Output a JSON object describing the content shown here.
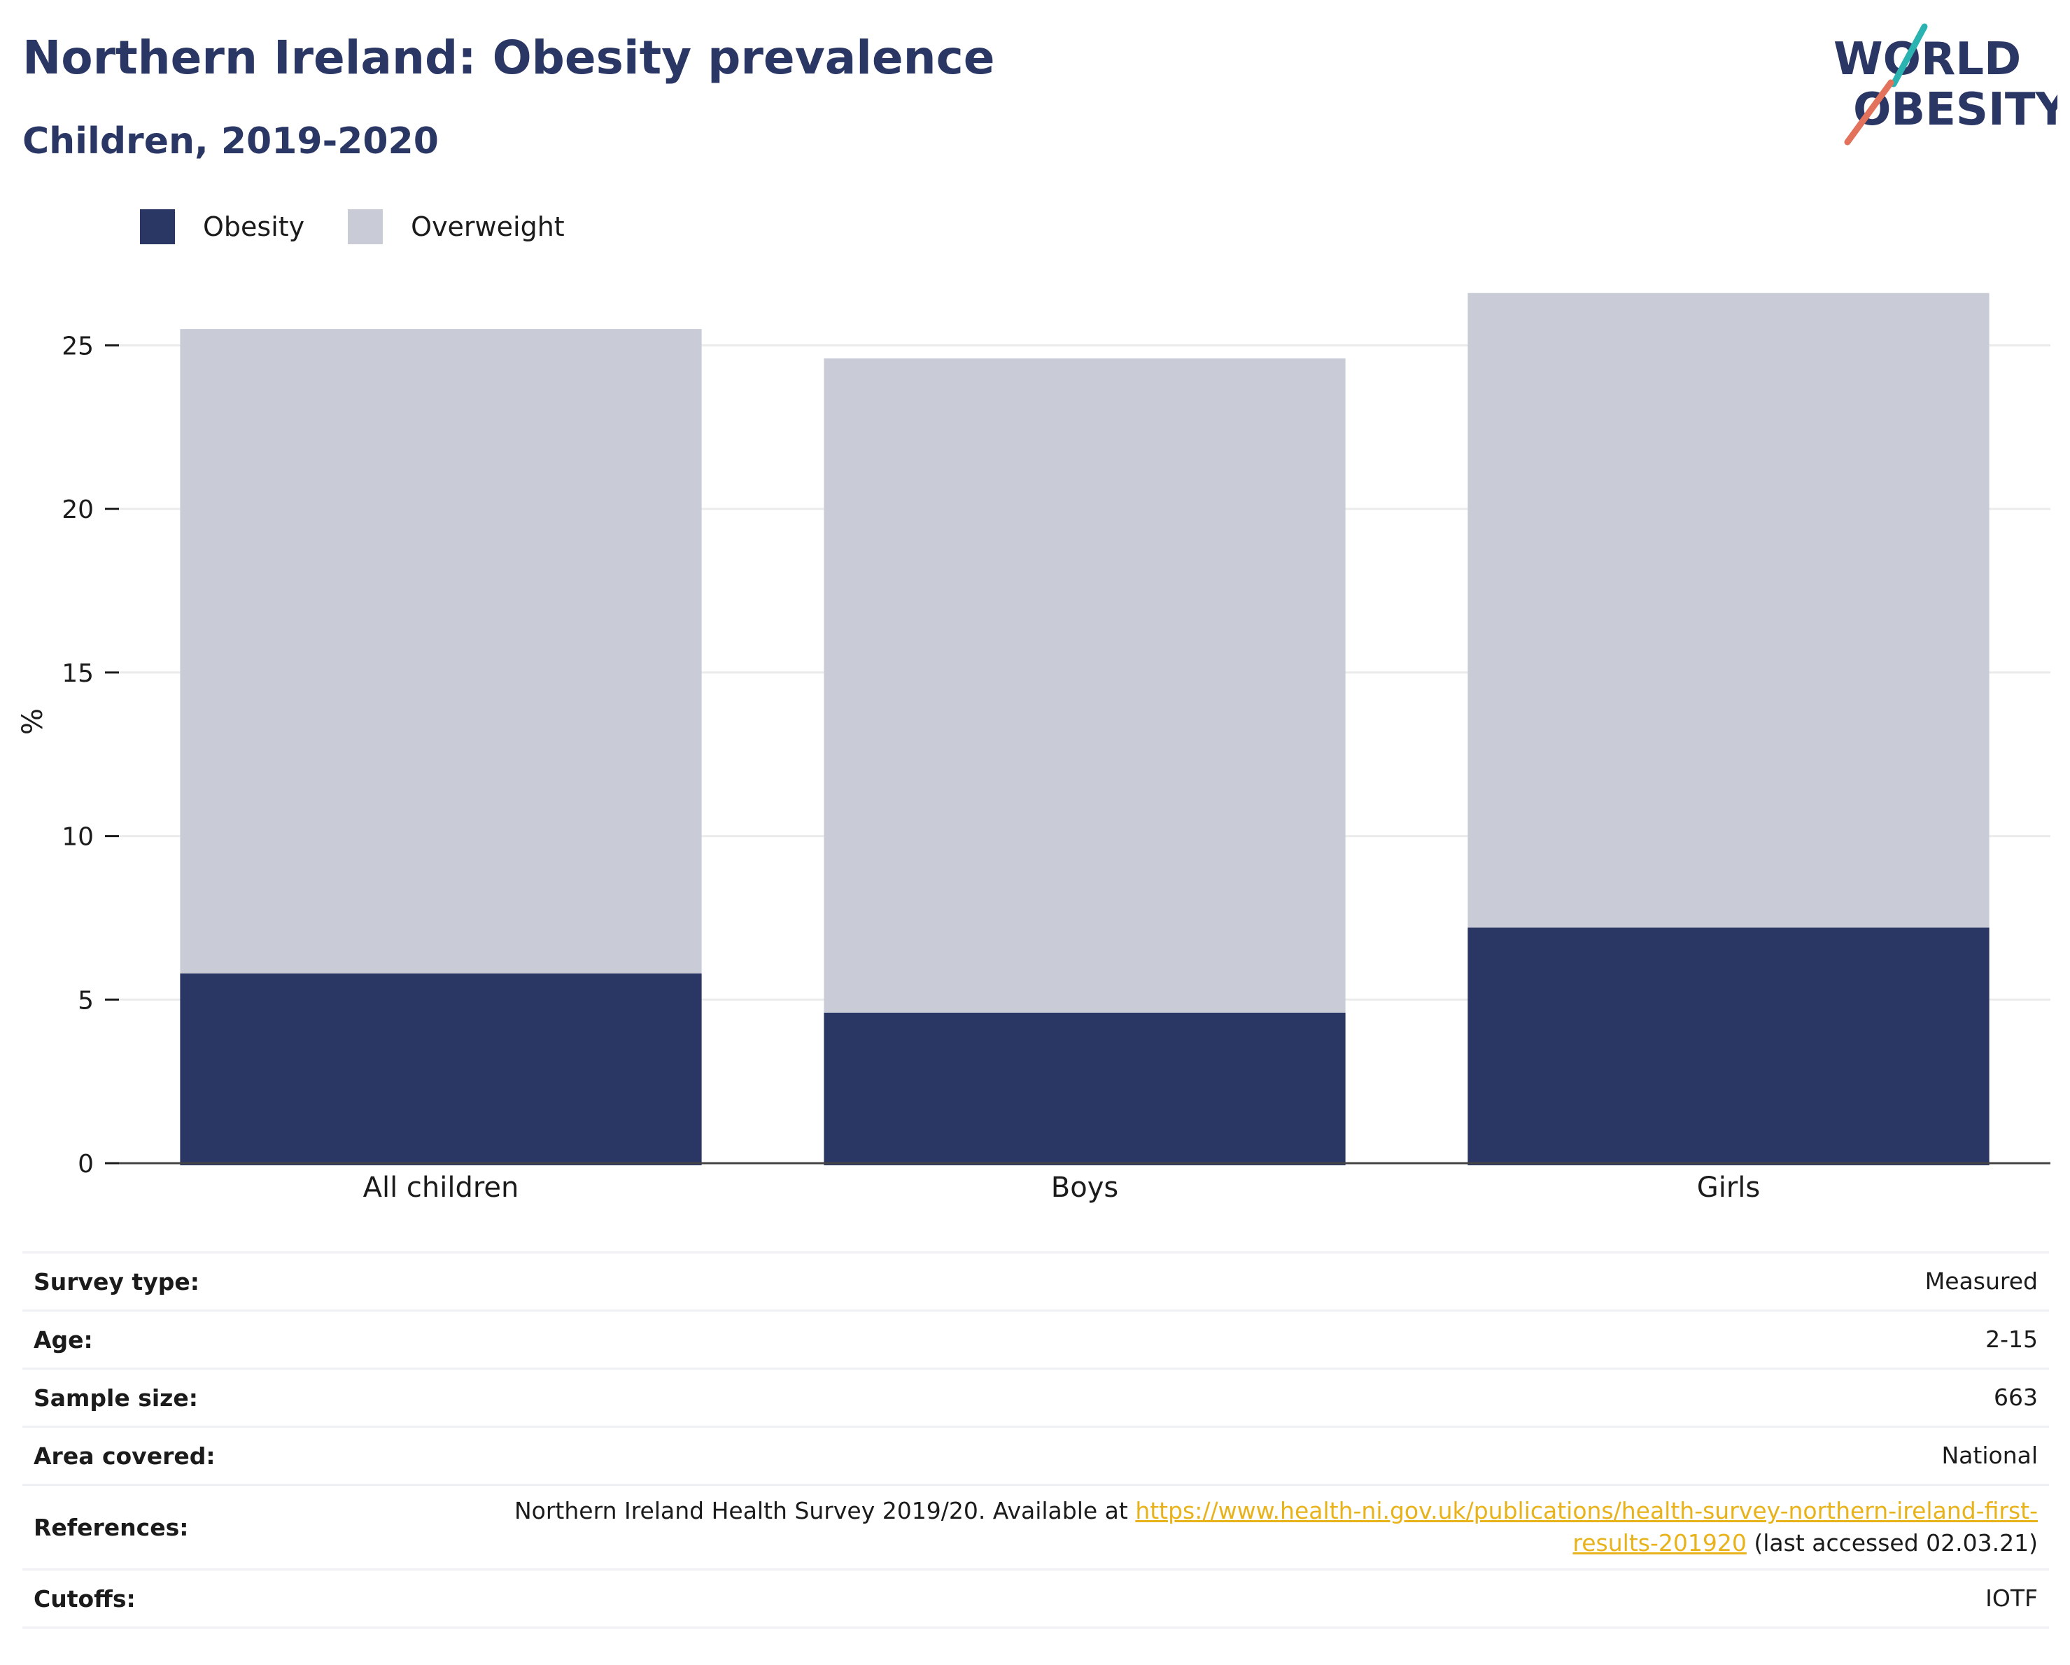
{
  "header": {
    "title": "Northern Ireland: Obesity prevalence",
    "subtitle": "Children, 2019-2020"
  },
  "logo": {
    "line1": "WORLD",
    "line2": "OBESITY",
    "accent_colors": [
      "#2ab3b1",
      "#e2725b"
    ]
  },
  "legend": [
    {
      "label": "Obesity",
      "color": "#2a3664"
    },
    {
      "label": "Overweight",
      "color": "#c9cbd7"
    }
  ],
  "chart_data": {
    "type": "bar",
    "stacked": false,
    "overlay": true,
    "categories": [
      "All children",
      "Boys",
      "Girls"
    ],
    "series": [
      {
        "name": "Overweight",
        "color": "#c9cbd7",
        "values": [
          25.5,
          24.6,
          26.6
        ]
      },
      {
        "name": "Obesity",
        "color": "#2a3664",
        "values": [
          5.8,
          4.6,
          7.2
        ]
      }
    ],
    "ylabel": "%",
    "xlabel": "",
    "ylim": [
      0,
      27
    ],
    "yticks": [
      0,
      5,
      10,
      15,
      20,
      25
    ],
    "grid": true,
    "legend_position": "top-left"
  },
  "info_table": {
    "rows": [
      {
        "key": "Survey type:",
        "value": "Measured"
      },
      {
        "key": "Age:",
        "value": "2-15"
      },
      {
        "key": "Sample size:",
        "value": "663"
      },
      {
        "key": "Area covered:",
        "value": "National"
      },
      {
        "key": "Cutoffs:",
        "value": "IOTF"
      }
    ],
    "references": {
      "key": "References:",
      "text_before": "Northern Ireland Health Survey 2019/20. Available at ",
      "link": "https://www.health-ni.gov.uk/publications/health-survey-northern-ireland-first-results-201920",
      "text_after": " (last accessed 02.03.21)"
    }
  }
}
